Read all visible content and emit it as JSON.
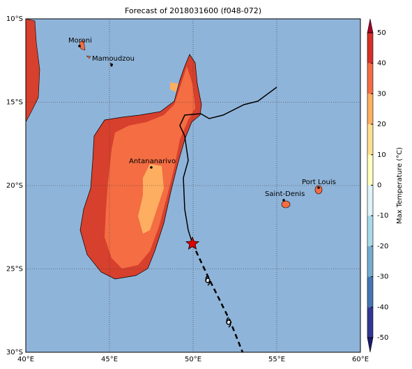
{
  "title": "Forecast of 2018031600 (f048-072)",
  "map": {
    "lon_ticks": [
      "40°E",
      "45°E",
      "50°E",
      "55°E",
      "60°E"
    ],
    "lat_ticks": [
      "10°S",
      "15°S",
      "20°S",
      "25°S",
      "30°S"
    ],
    "cities": [
      "Moroni",
      "Mamoudzou",
      "Antananarivo",
      "Saint-Denis",
      "Port Louis"
    ]
  },
  "colorbar": {
    "label": "Max Temperature (°C)",
    "ticks": [
      -50,
      -40,
      -30,
      -20,
      -10,
      0,
      10,
      20,
      30,
      40,
      50
    ],
    "lim": [
      -50,
      50
    ],
    "colors": [
      "#313695",
      "#4575b4",
      "#74add1",
      "#abd9e9",
      "#e0f3f8",
      "#ffffbf",
      "#fee090",
      "#fdae61",
      "#f46d43",
      "#d73027"
    ],
    "under_color": "#1a1a6e",
    "over_color": "#a50026"
  }
}
